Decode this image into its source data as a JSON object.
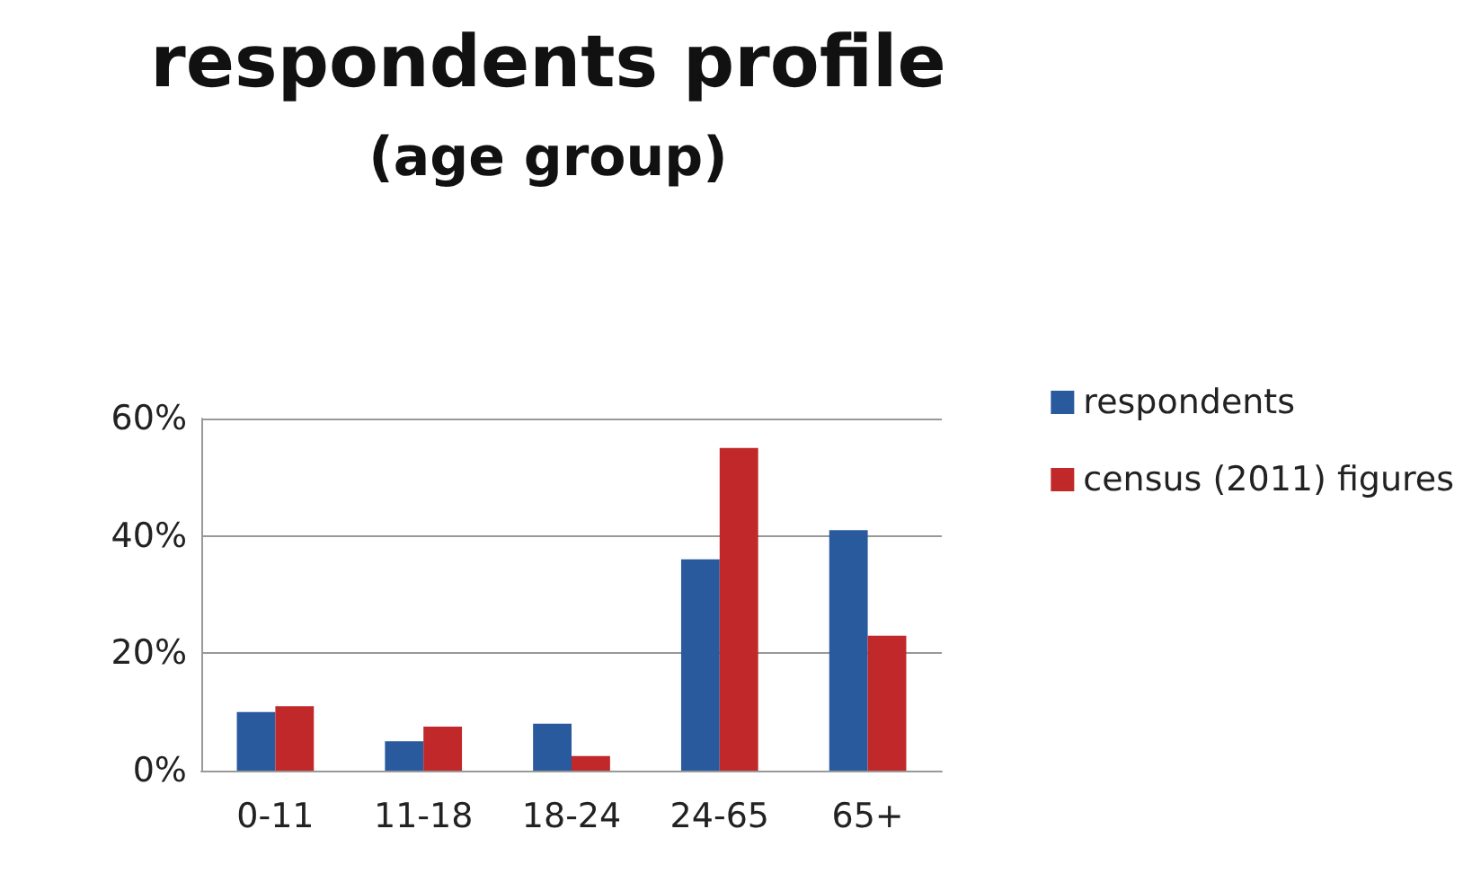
{
  "chart_data": {
    "type": "bar",
    "title": "respondents profile",
    "subtitle": "(age group)",
    "categories": [
      "0-11",
      "11-18",
      "18-24",
      "24-65",
      "65+"
    ],
    "series": [
      {
        "name": "respondents",
        "color": "#2a5a9e",
        "values": [
          10,
          5,
          8,
          36,
          41
        ]
      },
      {
        "name": "census (2011) figures",
        "color": "#c0282a",
        "values": [
          11,
          7.5,
          2.5,
          55,
          23
        ]
      }
    ],
    "ylim": [
      0,
      60
    ],
    "yticks": [
      {
        "value": 0,
        "label": "0%"
      },
      {
        "value": 20,
        "label": "20%"
      },
      {
        "value": 40,
        "label": "40%"
      },
      {
        "value": 60,
        "label": "60%"
      }
    ],
    "grid": "y",
    "legend": "right"
  }
}
